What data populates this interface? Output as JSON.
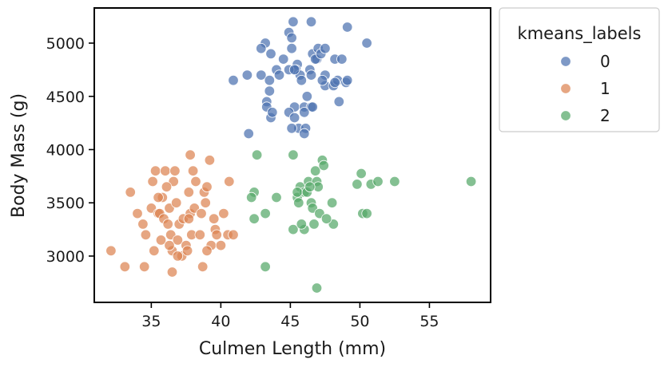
{
  "chart_data": {
    "type": "scatter",
    "xlabel": "Culmen Length (mm)",
    "ylabel": "Body Mass (g)",
    "xlim": [
      30.9,
      59.4
    ],
    "ylim": [
      2565,
      5330
    ],
    "xticks": [
      35,
      40,
      45,
      50,
      55
    ],
    "yticks": [
      3000,
      3500,
      4000,
      4500,
      5000
    ],
    "grid": false,
    "legend": {
      "title": "kmeans_labels",
      "placement": "outside-top-right"
    },
    "colors": [
      "#4c72b0",
      "#dd8452",
      "#55a868"
    ],
    "series": [
      {
        "name": "0",
        "points": [
          [
            45.2,
            5200
          ],
          [
            46.5,
            5200
          ],
          [
            49.1,
            5150
          ],
          [
            43.2,
            5000
          ],
          [
            42.9,
            4950
          ],
          [
            43.6,
            4900
          ],
          [
            44.5,
            4850
          ],
          [
            44.9,
            5100
          ],
          [
            45.1,
            5050
          ],
          [
            45.1,
            4950
          ],
          [
            46.6,
            4900
          ],
          [
            46.9,
            4850
          ],
          [
            47.0,
            4950
          ],
          [
            46.8,
            4850
          ],
          [
            45.5,
            4800
          ],
          [
            45.4,
            4750
          ],
          [
            45.7,
            4700
          ],
          [
            46.4,
            4750
          ],
          [
            47.2,
            4900
          ],
          [
            47.5,
            4950
          ],
          [
            48.2,
            4850
          ],
          [
            50.5,
            5000
          ],
          [
            41.9,
            4700
          ],
          [
            40.9,
            4650
          ],
          [
            42.9,
            4700
          ],
          [
            43.5,
            4650
          ],
          [
            43.5,
            4550
          ],
          [
            44.9,
            4750
          ],
          [
            45.3,
            4750
          ],
          [
            45.3,
            4400
          ],
          [
            45.8,
            4650
          ],
          [
            46.2,
            4500
          ],
          [
            46.5,
            4700
          ],
          [
            47.5,
            4600
          ],
          [
            48.1,
            4600
          ],
          [
            48.4,
            4650
          ],
          [
            48.5,
            4450
          ],
          [
            49.0,
            4630
          ],
          [
            47.5,
            4700
          ],
          [
            46.0,
            4400
          ],
          [
            46.5,
            4400
          ],
          [
            43.3,
            4450
          ],
          [
            43.3,
            4400
          ],
          [
            43.6,
            4300
          ],
          [
            43.7,
            4350
          ],
          [
            44.9,
            4350
          ],
          [
            45.3,
            4300
          ],
          [
            45.6,
            4200
          ],
          [
            46.1,
            4200
          ],
          [
            46.0,
            4350
          ],
          [
            45.1,
            4200
          ],
          [
            42.0,
            4150
          ],
          [
            46.0,
            4150
          ],
          [
            46.6,
            4400
          ],
          [
            48.2,
            4630
          ],
          [
            49.1,
            4650
          ],
          [
            47.3,
            4650
          ],
          [
            48.7,
            4850
          ],
          [
            44.0,
            4750
          ],
          [
            44.2,
            4700
          ]
        ]
      },
      {
        "name": "1",
        "points": [
          [
            32.1,
            3050
          ],
          [
            33.1,
            2900
          ],
          [
            33.5,
            3600
          ],
          [
            34.0,
            3400
          ],
          [
            34.4,
            3300
          ],
          [
            34.6,
            3200
          ],
          [
            34.5,
            2900
          ],
          [
            35.0,
            3450
          ],
          [
            35.1,
            3700
          ],
          [
            35.2,
            3050
          ],
          [
            35.3,
            3800
          ],
          [
            35.5,
            3400
          ],
          [
            35.6,
            3400
          ],
          [
            35.7,
            3150
          ],
          [
            35.8,
            3550
          ],
          [
            35.9,
            3350
          ],
          [
            36.0,
            3800
          ],
          [
            36.2,
            3300
          ],
          [
            36.3,
            3450
          ],
          [
            36.4,
            3200
          ],
          [
            36.5,
            3050
          ],
          [
            36.6,
            3700
          ],
          [
            36.7,
            3800
          ],
          [
            36.8,
            3500
          ],
          [
            36.9,
            3150
          ],
          [
            37.0,
            3300
          ],
          [
            37.2,
            3000
          ],
          [
            37.3,
            3350
          ],
          [
            37.5,
            3100
          ],
          [
            37.6,
            3050
          ],
          [
            37.7,
            3600
          ],
          [
            37.8,
            3400
          ],
          [
            37.9,
            3200
          ],
          [
            38.0,
            3800
          ],
          [
            38.1,
            3450
          ],
          [
            38.2,
            3700
          ],
          [
            38.5,
            3200
          ],
          [
            38.6,
            3400
          ],
          [
            38.8,
            3600
          ],
          [
            38.9,
            3500
          ],
          [
            39.0,
            3650
          ],
          [
            39.2,
            3900
          ],
          [
            39.3,
            3100
          ],
          [
            39.5,
            3350
          ],
          [
            39.6,
            3250
          ],
          [
            39.7,
            3200
          ],
          [
            40.0,
            3100
          ],
          [
            40.2,
            3400
          ],
          [
            40.5,
            3200
          ],
          [
            40.9,
            3200
          ],
          [
            36.5,
            2850
          ],
          [
            36.3,
            3100
          ],
          [
            35.5,
            3550
          ],
          [
            36.1,
            3650
          ],
          [
            37.8,
            3950
          ],
          [
            38.7,
            2900
          ],
          [
            39.0,
            3050
          ],
          [
            37.7,
            3350
          ],
          [
            40.6,
            3700
          ],
          [
            36.9,
            3000
          ]
        ]
      },
      {
        "name": "2",
        "points": [
          [
            42.6,
            3950
          ],
          [
            45.2,
            3950
          ],
          [
            47.3,
            3900
          ],
          [
            42.4,
            3600
          ],
          [
            42.2,
            3550
          ],
          [
            42.4,
            3350
          ],
          [
            43.2,
            3400
          ],
          [
            45.2,
            3250
          ],
          [
            46.0,
            3250
          ],
          [
            46.7,
            3300
          ],
          [
            45.5,
            3550
          ],
          [
            45.6,
            3500
          ],
          [
            45.7,
            3650
          ],
          [
            46.0,
            3600
          ],
          [
            46.3,
            3700
          ],
          [
            46.5,
            3500
          ],
          [
            46.6,
            3450
          ],
          [
            46.9,
            3700
          ],
          [
            47.0,
            3650
          ],
          [
            46.8,
            3800
          ],
          [
            47.4,
            3850
          ],
          [
            48.1,
            3300
          ],
          [
            49.8,
            3675
          ],
          [
            50.1,
            3775
          ],
          [
            50.2,
            3400
          ],
          [
            50.5,
            3400
          ],
          [
            50.8,
            3675
          ],
          [
            51.3,
            3700
          ],
          [
            52.5,
            3700
          ],
          [
            58.0,
            3700
          ],
          [
            43.2,
            2900
          ],
          [
            46.9,
            2700
          ],
          [
            45.5,
            3600
          ],
          [
            46.2,
            3600
          ],
          [
            46.4,
            3650
          ],
          [
            45.8,
            3300
          ],
          [
            47.1,
            3400
          ],
          [
            44.0,
            3550
          ],
          [
            48.0,
            3500
          ],
          [
            47.6,
            3350
          ]
        ]
      }
    ]
  }
}
